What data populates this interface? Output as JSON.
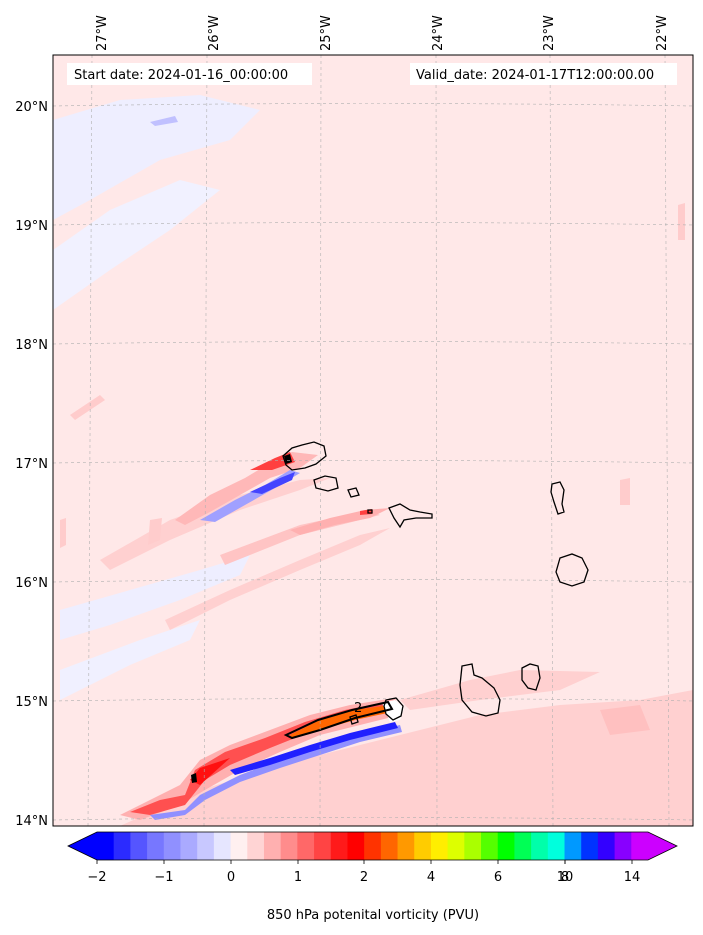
{
  "header": {
    "start_date": "Start date: 2024-01-16_00:00:00",
    "valid_date": "Valid_date: 2024-01-17T12:00:00.00"
  },
  "axes": {
    "lon_labels": [
      "27°W",
      "26°W",
      "25°W",
      "24°W",
      "23°W",
      "22°W"
    ],
    "lat_labels": [
      "20°N",
      "19°N",
      "18°N",
      "17°N",
      "16°N",
      "15°N",
      "14°N"
    ]
  },
  "contour_label": "2",
  "colorbar": {
    "title": "850 hPa potenital vorticity (PVU)",
    "tick_labels": [
      "−2",
      "−1",
      "0",
      "1",
      "2",
      "4",
      "6",
      "8",
      "10",
      "14"
    ],
    "colors": [
      "#0000ff",
      "#2b2bff",
      "#5555ff",
      "#7777ff",
      "#9090ff",
      "#aaaaff",
      "#c8c8ff",
      "#e6e6ff",
      "#fff0f0",
      "#ffd4d4",
      "#ffb0b0",
      "#ff8c8c",
      "#ff6868",
      "#ff4444",
      "#ff1a1a",
      "#ff0000",
      "#ff3300",
      "#ff6600",
      "#ff9900",
      "#ffcc00",
      "#ffee00",
      "#ddff00",
      "#aaff00",
      "#55ff00",
      "#00ff00",
      "#00ff55",
      "#00ffaa",
      "#00ffdd",
      "#0099ff",
      "#0033ff",
      "#3300ff",
      "#8800ff",
      "#cc00ff"
    ],
    "left_arrow_color": "#0000ff",
    "right_arrow_color": "#cc00ff"
  },
  "map_colors": {
    "background": "#ffe8e8",
    "light_blue": "#eeeeff",
    "pink": "#ffcccc",
    "red": "#ff3030",
    "deep_red": "#ff1010",
    "blue": "#4040ff",
    "dark_blue": "#0000ff",
    "orange": "#ff6600"
  }
}
